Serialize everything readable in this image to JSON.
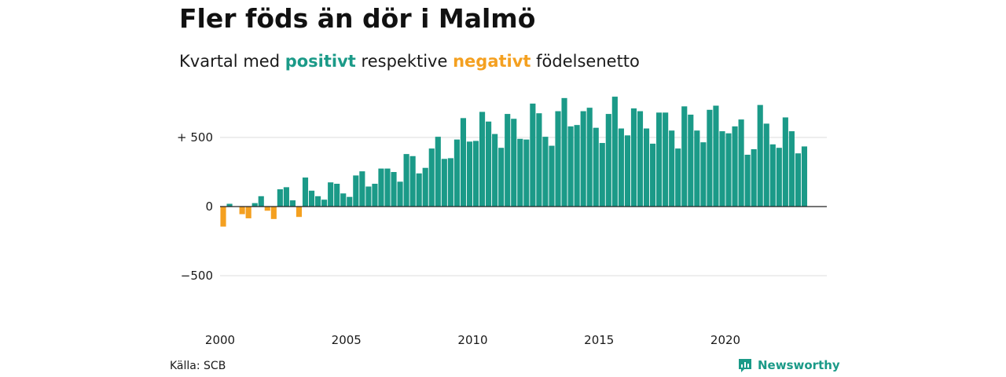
{
  "title": "Fler föds än dör i Malmö",
  "subtitle": {
    "prefix": "Kvartal med",
    "positive_word": "positivt",
    "middle": "respektive",
    "negative_word": "negativt",
    "suffix": "födelsenetto"
  },
  "source": "Källa: SCB",
  "brand": "Newsworthy",
  "colors": {
    "positive": "#1b9a88",
    "negative": "#f4a020",
    "grid": "#dddddd",
    "zero_line": "#222222"
  },
  "chart_data": {
    "type": "bar",
    "title": "Fler föds än dör i Malmö",
    "xlabel": "",
    "ylabel": "",
    "ylim": [
      -850,
      900
    ],
    "y_ticks": [
      500,
      0,
      -500
    ],
    "y_tick_labels": [
      "+ 500",
      "0",
      "−500"
    ],
    "x_ticks": [
      2000,
      2005,
      2010,
      2015,
      2020
    ],
    "x_tick_labels": [
      "2000",
      "2005",
      "2010",
      "2015",
      "2020"
    ],
    "grid": true,
    "start": {
      "year": 2000,
      "quarter": 1
    },
    "values": [
      -145,
      20,
      0,
      -55,
      -85,
      25,
      75,
      -30,
      -90,
      125,
      140,
      45,
      -75,
      210,
      115,
      75,
      50,
      175,
      165,
      95,
      70,
      225,
      255,
      145,
      165,
      275,
      275,
      250,
      180,
      380,
      365,
      240,
      280,
      420,
      505,
      345,
      350,
      485,
      640,
      470,
      475,
      685,
      615,
      525,
      425,
      670,
      635,
      490,
      485,
      745,
      675,
      505,
      440,
      690,
      785,
      580,
      590,
      690,
      715,
      570,
      460,
      670,
      795,
      565,
      515,
      710,
      690,
      565,
      455,
      680,
      680,
      550,
      420,
      725,
      665,
      550,
      465,
      700,
      730,
      545,
      530,
      580,
      630,
      375,
      415,
      735,
      600,
      450,
      425,
      645,
      545,
      385,
      435
    ]
  }
}
